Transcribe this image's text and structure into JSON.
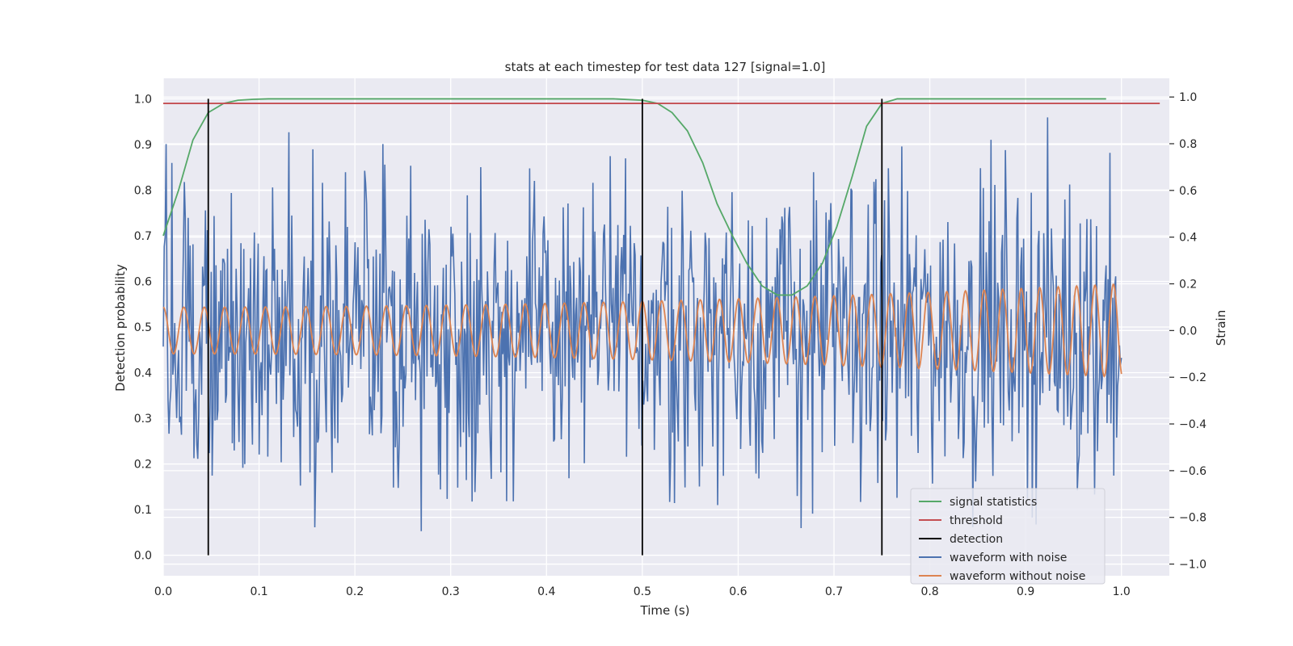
{
  "chart_data": {
    "type": "line",
    "title": "stats at each timestep for test data 127 [signal=1.0]",
    "xlabel": "Time (s)",
    "ylabel": "Detection probability",
    "ylabel_right": "Strain",
    "xlim": [
      0.0,
      1.05
    ],
    "ylim": [
      -0.045,
      1.045
    ],
    "ylim_right": [
      -1.05,
      1.08
    ],
    "x_ticks": [
      "0.0",
      "0.1",
      "0.2",
      "0.3",
      "0.4",
      "0.5",
      "0.6",
      "0.7",
      "0.8",
      "0.9",
      "1.0"
    ],
    "y_ticks": [
      "0.0",
      "0.1",
      "0.2",
      "0.3",
      "0.4",
      "0.5",
      "0.6",
      "0.7",
      "0.8",
      "0.9",
      "1.0"
    ],
    "y_ticks_right": [
      "−1.0",
      "−0.8",
      "−0.6",
      "−0.4",
      "−0.2",
      "0.0",
      "0.2",
      "0.4",
      "0.6",
      "0.8",
      "1.0"
    ],
    "grid": true,
    "legend_position": "lower-right",
    "colors": {
      "signal_statistics": "#55a868",
      "threshold": "#c44e52",
      "detection": "#000000",
      "waveform_with_noise": "#4c72b0",
      "waveform_without_noise": "#dd8452",
      "background": "#eaeaf2"
    },
    "series": [
      {
        "name": "signal statistics",
        "axis": "left",
        "x": [
          0.0,
          0.016,
          0.031,
          0.047,
          0.063,
          0.078,
          0.094,
          0.11,
          0.2,
          0.3,
          0.4,
          0.47,
          0.5,
          0.516,
          0.531,
          0.547,
          0.563,
          0.578,
          0.594,
          0.609,
          0.625,
          0.641,
          0.656,
          0.672,
          0.688,
          0.703,
          0.719,
          0.734,
          0.75,
          0.766,
          0.781,
          0.8,
          0.9,
          0.984
        ],
        "y": [
          0.7,
          0.8,
          0.91,
          0.97,
          0.99,
          0.997,
          0.999,
          1.0,
          1.0,
          1.0,
          1.0,
          1.0,
          0.997,
          0.99,
          0.97,
          0.93,
          0.86,
          0.77,
          0.7,
          0.64,
          0.59,
          0.57,
          0.57,
          0.59,
          0.64,
          0.72,
          0.83,
          0.94,
          0.99,
          1.0,
          1.0,
          1.0,
          1.0,
          1.0
        ]
      },
      {
        "name": "threshold",
        "axis": "left",
        "x": [
          0.0,
          1.04
        ],
        "y": [
          0.99,
          0.99
        ]
      },
      {
        "name": "detection",
        "axis": "left",
        "x": [
          0.047,
          0.5,
          0.75
        ],
        "y_range": [
          0.0,
          1.0
        ]
      },
      {
        "name": "waveform with noise",
        "axis": "right",
        "x_range": [
          0.0,
          1.0
        ],
        "samples": 1000,
        "y_range": [
          -0.95,
          1.0
        ]
      },
      {
        "name": "waveform without noise",
        "axis": "right",
        "x_range": [
          0.0,
          1.0
        ],
        "cycles": 48,
        "amplitude_range": [
          0.1,
          0.2
        ],
        "offset": 0.0
      }
    ]
  }
}
